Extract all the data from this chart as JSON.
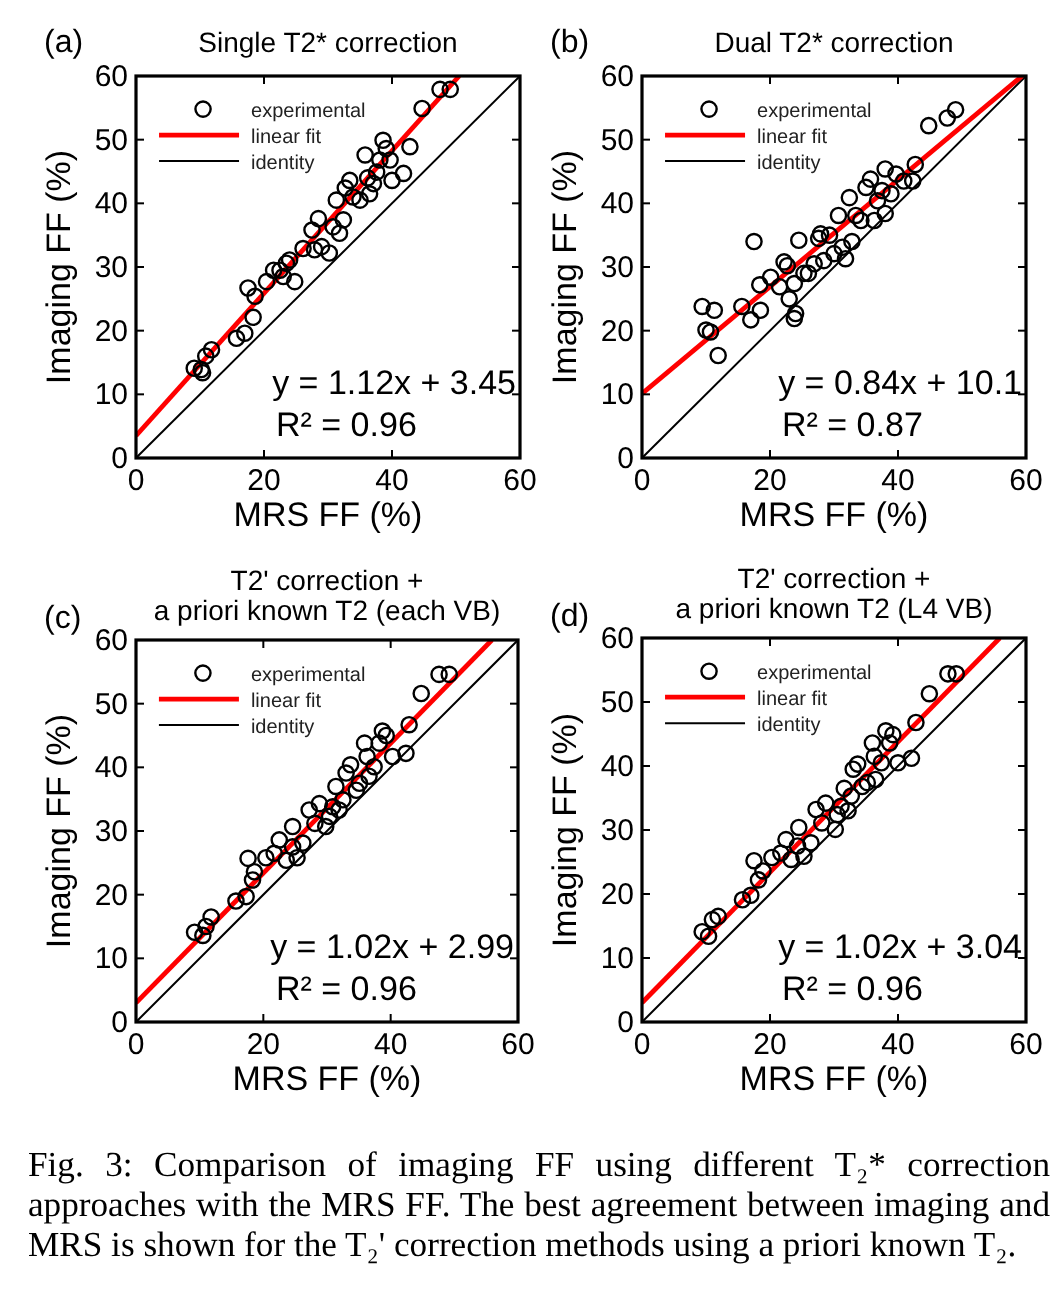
{
  "chart_data": [
    {
      "type": "scatter",
      "title": "Single T2* correction",
      "xlabel": "MRS FF (%)",
      "ylabel": "Imaging FF (%)",
      "xlim": [
        0,
        60
      ],
      "ylim": [
        0,
        60
      ],
      "xticks": [
        0,
        20,
        40,
        60
      ],
      "yticks": [
        0,
        10,
        20,
        30,
        40,
        50,
        60
      ],
      "legend": "top left",
      "annotations": [
        "(a)",
        "y = 1.12x + 3.45",
        "R² = 0.96"
      ],
      "series": [
        {
          "name": "experimental",
          "marker": "circle",
          "color": "#000000",
          "x": [
            9.1,
            10.4,
            10.2,
            10.9,
            11.8,
            15.7,
            17,
            18.3,
            17.5,
            18.6,
            20.4,
            21.5,
            22.5,
            23.5,
            24,
            23,
            24.8,
            26.1,
            27.5,
            28.5,
            27.9,
            29,
            30.2,
            30.8,
            31.3,
            31.8,
            32.4,
            32.7,
            33.4,
            33.9,
            35,
            35.8,
            36.2,
            36.5,
            37.1,
            37.6,
            38.1,
            38.6,
            39.1,
            39.7,
            40,
            41.8,
            42.8,
            44.7,
            47.5,
            49.1
          ],
          "values": [
            14.1,
            13.4,
            13.9,
            16,
            17,
            18.8,
            19.6,
            22.1,
            26.7,
            25.4,
            27.7,
            29.5,
            29.5,
            30.6,
            31.1,
            28.5,
            27.7,
            32.9,
            35.8,
            37.6,
            32.7,
            33.2,
            32.2,
            36.3,
            40.5,
            35.3,
            37.4,
            42.4,
            43.6,
            41,
            40.5,
            47.6,
            44,
            41.5,
            43.1,
            44.9,
            46.8,
            49.9,
            48.6,
            46.8,
            43.6,
            44.7,
            48.9,
            54.9,
            57.9,
            57.9
          ]
        },
        {
          "name": "linear fit",
          "type": "line",
          "color": "#ff0000",
          "x": [
            0,
            50.5
          ],
          "values": [
            3.5,
            60
          ]
        },
        {
          "name": "identity",
          "type": "line",
          "color": "#000000",
          "x": [
            0,
            60
          ],
          "values": [
            0,
            60
          ]
        }
      ]
    },
    {
      "type": "scatter",
      "title": "Dual T2* correction",
      "xlabel": "MRS FF (%)",
      "ylabel": "Imaging FF (%)",
      "xlim": [
        0,
        60
      ],
      "ylim": [
        0,
        60
      ],
      "xticks": [
        0,
        20,
        40,
        60
      ],
      "yticks": [
        0,
        10,
        20,
        30,
        40,
        50,
        60
      ],
      "legend": "top left",
      "annotations": [
        "(b)",
        "y = 0.84x + 10.1",
        "R² = 0.87"
      ],
      "series": [
        {
          "name": "experimental",
          "marker": "circle",
          "color": "#000000",
          "x": [
            9.4,
            10,
            10.7,
            11.3,
            11.9,
            15.6,
            17,
            17.5,
            18.5,
            18.4,
            20.1,
            21.5,
            22.2,
            22.7,
            23,
            23.8,
            24,
            23.8,
            24.5,
            25.3,
            26,
            26.9,
            27.6,
            27.9,
            28.4,
            29.3,
            30,
            30.7,
            31.3,
            31.8,
            32.4,
            32.8,
            33.4,
            34.2,
            35,
            35.7,
            36.3,
            36.8,
            37.5,
            38,
            38,
            38.9,
            39.7,
            40.9,
            42.3,
            42.7,
            44.8,
            47.7,
            49
          ],
          "values": [
            23.8,
            20.1,
            19.8,
            23.2,
            16.1,
            23.8,
            21.7,
            34,
            23.2,
            27.2,
            28.4,
            26.9,
            30.8,
            30.2,
            25,
            27.4,
            22.7,
            21.9,
            34.2,
            29,
            29,
            30.5,
            34.5,
            35.2,
            31,
            35,
            32.1,
            38.1,
            33.1,
            31.3,
            40.9,
            34,
            38.1,
            37.3,
            42.5,
            43.8,
            37.3,
            40.4,
            42,
            38.4,
            45.4,
            41.5,
            44.6,
            43.5,
            43.5,
            46.1,
            52.2,
            53.4,
            54.7
          ]
        },
        {
          "name": "linear fit",
          "type": "line",
          "color": "#ff0000",
          "x": [
            0,
            59.4
          ],
          "values": [
            10.1,
            60
          ]
        },
        {
          "name": "identity",
          "type": "line",
          "color": "#000000",
          "x": [
            0,
            60
          ],
          "values": [
            0,
            60
          ]
        }
      ]
    },
    {
      "type": "scatter",
      "title": "T2' correction +\na priori known T2 (each VB)",
      "xlabel": "MRS FF (%)",
      "ylabel": "Imaging FF (%)",
      "xlim": [
        0,
        60
      ],
      "ylim": [
        0,
        60
      ],
      "xticks": [
        0,
        20,
        40,
        60
      ],
      "yticks": [
        0,
        10,
        20,
        30,
        40,
        50,
        60
      ],
      "legend": "top left",
      "annotations": [
        "(c)",
        "y = 1.02x + 2.99",
        "R² = 0.96"
      ],
      "series": [
        {
          "name": "experimental",
          "marker": "circle",
          "color": "#000000",
          "x": [
            9.2,
            10.5,
            11,
            11.8,
            15.7,
            17.3,
            18.3,
            17.6,
            18.6,
            20.4,
            21.7,
            22.5,
            23.6,
            24.6,
            24.6,
            25.3,
            26.2,
            27.2,
            28.1,
            28.8,
            29.8,
            30.4,
            30.9,
            31.4,
            31.9,
            32.5,
            33,
            33.7,
            34.6,
            35.1,
            35.9,
            36.3,
            36.6,
            37.4,
            38.2,
            38.7,
            39.3,
            40.3,
            42.4,
            42.9,
            44.8,
            47.6,
            49.2
          ],
          "values": [
            14.1,
            13.6,
            15,
            16.5,
            19,
            19.7,
            22.3,
            25.7,
            23.6,
            25.8,
            26.5,
            28.6,
            25.4,
            27.5,
            30.7,
            25.8,
            28.1,
            33.3,
            31.2,
            34.3,
            30.7,
            32.3,
            33.8,
            37,
            33.3,
            34.9,
            39.1,
            40.4,
            36.4,
            37.5,
            43.8,
            41.7,
            38.6,
            40.1,
            43.8,
            45.7,
            45,
            41.7,
            42.2,
            46.7,
            51.6,
            54.6,
            54.6
          ]
        },
        {
          "name": "linear fit",
          "type": "line",
          "color": "#ff0000",
          "x": [
            0,
            55.9
          ],
          "values": [
            3.0,
            60
          ]
        },
        {
          "name": "identity",
          "type": "line",
          "color": "#000000",
          "x": [
            0,
            60
          ],
          "values": [
            0,
            60
          ]
        }
      ]
    },
    {
      "type": "scatter",
      "title": "T2' correction +\na priori known T2 (L4 VB)",
      "xlabel": "MRS FF (%)",
      "ylabel": "Imaging FF (%)",
      "xlim": [
        0,
        60
      ],
      "ylim": [
        0,
        60
      ],
      "xticks": [
        0,
        20,
        40,
        60
      ],
      "yticks": [
        0,
        10,
        20,
        30,
        40,
        50,
        60
      ],
      "legend": "top left",
      "annotations": [
        "(d)",
        "y = 1.02x + 3.04",
        "R² = 0.96",
        "Fig. 3: Comparison of imaging FF using different T₂* correction approaches with the MRS FF. The best agreement between imaging and MRS is shown for the T₂' correction methods using a priori known T₂."
      ],
      "series": [
        {
          "name": "experimental",
          "marker": "circle",
          "color": "#000000",
          "x": [
            9.4,
            10.4,
            11,
            11.9,
            15.7,
            17,
            18.2,
            17.5,
            18.9,
            20.3,
            21.7,
            22.5,
            23.3,
            24.3,
            24.5,
            25.3,
            26.4,
            27.2,
            28.1,
            28.7,
            30.2,
            30.5,
            31.1,
            31.6,
            32.2,
            32.7,
            33,
            33.7,
            34.4,
            35.2,
            36,
            36.3,
            36.5,
            37.4,
            38.1,
            38.7,
            39.2,
            40,
            42.1,
            42.8,
            44.9,
            47.8,
            49.1
          ],
          "values": [
            14.1,
            13.4,
            16,
            16.5,
            19.1,
            19.8,
            22.2,
            25.2,
            23.6,
            25.7,
            26.4,
            28.5,
            25.4,
            27.5,
            30.4,
            25.9,
            28,
            33.2,
            31.1,
            34.2,
            30.1,
            32.4,
            33.7,
            36.5,
            33,
            35.3,
            39.5,
            40.3,
            36.8,
            37.4,
            43.6,
            41.5,
            37.9,
            40.5,
            45.5,
            43.6,
            44.9,
            40.5,
            41.2,
            46.8,
            51.3,
            54.4,
            54.4
          ]
        },
        {
          "name": "linear fit",
          "type": "line",
          "color": "#ff0000",
          "x": [
            0,
            55.9
          ],
          "values": [
            3.0,
            60
          ]
        },
        {
          "name": "identity",
          "type": "line",
          "color": "#000000",
          "x": [
            0,
            60
          ],
          "values": [
            0,
            60
          ]
        }
      ]
    }
  ]
}
